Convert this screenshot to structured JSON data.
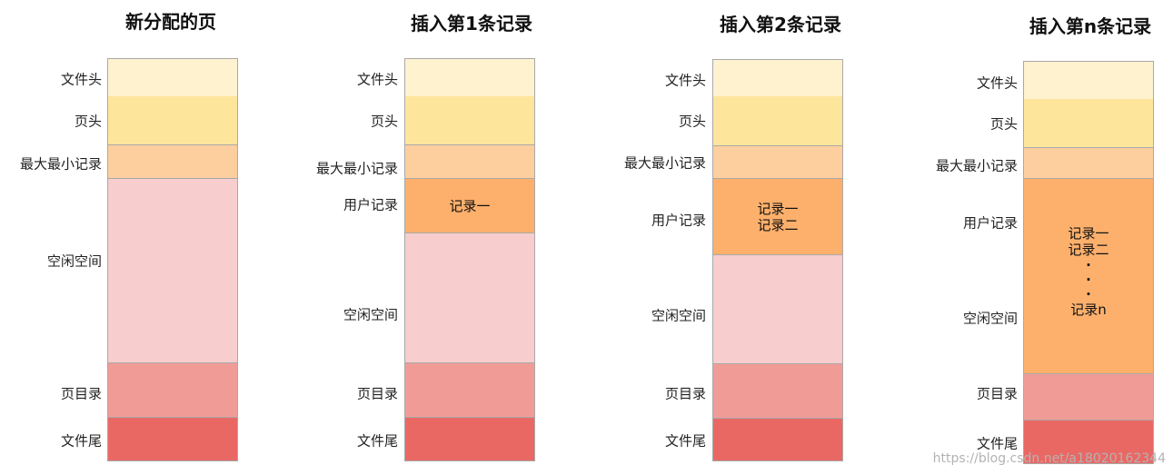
{
  "colors": {
    "file_header": "#fef2cf",
    "page_header": "#fee59c",
    "infimum_supremum": "#fdcf9f",
    "user_records": "#fdb06c",
    "free_space": "#f7cdcd",
    "page_directory": "#f19b96",
    "file_trailer": "#ea6864",
    "border": "#a9a9a9"
  },
  "columns": [
    {
      "title": "新分配的页",
      "segments": [
        {
          "key": "file_header",
          "label": "文件头"
        },
        {
          "key": "page_header",
          "label": "页头"
        },
        {
          "key": "infimum_supremum",
          "label": "最大最小记录"
        },
        {
          "key": "free_space",
          "label": "空闲空间"
        },
        {
          "key": "page_directory",
          "label": "页目录"
        },
        {
          "key": "file_trailer",
          "label": "文件尾"
        }
      ]
    },
    {
      "title": "插入第1条记录",
      "segments": [
        {
          "key": "file_header",
          "label": "文件头"
        },
        {
          "key": "page_header",
          "label": "页头"
        },
        {
          "key": "infimum_supremum",
          "label": "最大最小记录"
        },
        {
          "key": "user_records",
          "label": "用户记录",
          "content": [
            "记录一"
          ]
        },
        {
          "key": "free_space",
          "label": "空闲空间"
        },
        {
          "key": "page_directory",
          "label": "页目录"
        },
        {
          "key": "file_trailer",
          "label": "文件尾"
        }
      ]
    },
    {
      "title": "插入第2条记录",
      "segments": [
        {
          "key": "file_header",
          "label": "文件头"
        },
        {
          "key": "page_header",
          "label": "页头"
        },
        {
          "key": "infimum_supremum",
          "label": "最大最小记录"
        },
        {
          "key": "user_records",
          "label": "用户记录",
          "content": [
            "记录一",
            "记录二"
          ]
        },
        {
          "key": "free_space",
          "label": "空闲空间"
        },
        {
          "key": "page_directory",
          "label": "页目录"
        },
        {
          "key": "file_trailer",
          "label": "文件尾"
        }
      ]
    },
    {
      "title": "插入第n条记录",
      "segments": [
        {
          "key": "file_header",
          "label": "文件头"
        },
        {
          "key": "page_header",
          "label": "页头"
        },
        {
          "key": "infimum_supremum",
          "label": "最大最小记录"
        },
        {
          "key": "user_records",
          "label": "用户记录",
          "second_label": "空闲空间",
          "content": [
            "记录一",
            "记录二",
            "·",
            "·",
            "·",
            "记录n"
          ]
        },
        {
          "key": "page_directory",
          "label": "页目录"
        },
        {
          "key": "file_trailer",
          "label": "文件尾"
        }
      ]
    }
  ],
  "watermark": "https://blog.csdn.net/a18020162344"
}
